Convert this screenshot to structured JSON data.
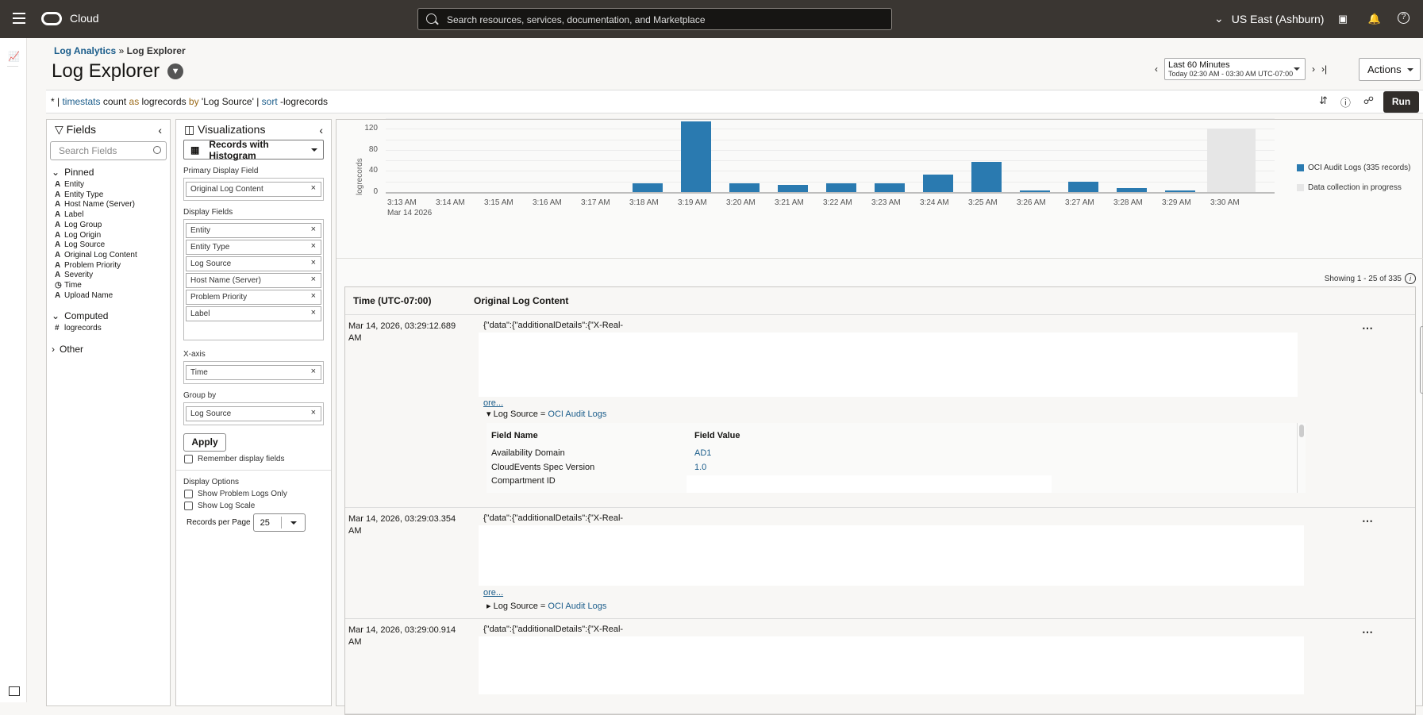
{
  "header": {
    "brand": "Cloud",
    "search_placeholder": "Search resources, services, documentation, and Marketplace",
    "region": "US East (Ashburn)",
    "icons": [
      "menu-icon",
      "oracle-logo-icon",
      "search-icon",
      "chevron-down-icon",
      "cloud-shell-icon",
      "bell-icon",
      "help-icon"
    ]
  },
  "left_nav": {
    "icons": [
      "chart-icon",
      "expand-panel-icon"
    ]
  },
  "breadcrumb": {
    "parent": "Log Analytics",
    "separator": "»",
    "current": "Log Explorer"
  },
  "page": {
    "title": "Log Explorer"
  },
  "time_range": {
    "label": "Last 60 Minutes",
    "detail": "Today 02:30 AM - 03:30 AM UTC-07:00"
  },
  "actions_label": "Actions",
  "run_label": "Run",
  "query": {
    "parts": [
      {
        "text": "* | ",
        "style": "plain"
      },
      {
        "text": "timestats",
        "style": "kw"
      },
      {
        "text": " count ",
        "style": "plain"
      },
      {
        "text": "as",
        "style": "kw2"
      },
      {
        "text": " logrecords ",
        "style": "plain"
      },
      {
        "text": "by",
        "style": "kw2"
      },
      {
        "text": " 'Log Source' | ",
        "style": "plain"
      },
      {
        "text": "sort",
        "style": "kw"
      },
      {
        "text": " -logrecords",
        "style": "plain"
      }
    ]
  },
  "fields_panel": {
    "title": "Fields",
    "search_placeholder": "Search Fields",
    "pinned_label": "Pinned",
    "pinned": [
      {
        "type": "A",
        "name": "Entity"
      },
      {
        "type": "A",
        "name": "Entity Type"
      },
      {
        "type": "A",
        "name": "Host Name (Server)"
      },
      {
        "type": "A",
        "name": "Label"
      },
      {
        "type": "A",
        "name": "Log Group"
      },
      {
        "type": "A",
        "name": "Log Origin"
      },
      {
        "type": "A",
        "name": "Log Source"
      },
      {
        "type": "A",
        "name": "Original Log Content"
      },
      {
        "type": "A",
        "name": "Problem Priority"
      },
      {
        "type": "A",
        "name": "Severity"
      },
      {
        "type": "◷",
        "name": "Time"
      },
      {
        "type": "A",
        "name": "Upload Name"
      }
    ],
    "computed_label": "Computed",
    "computed": [
      {
        "type": "#",
        "name": "logrecords"
      }
    ],
    "other_label": "Other"
  },
  "viz_panel": {
    "title": "Visualizations",
    "selected": "Records with Histogram",
    "primary_label": "Primary Display Field",
    "primary": "Original Log Content",
    "display_label": "Display Fields",
    "display": [
      "Entity",
      "Entity Type",
      "Log Source",
      "Host Name (Server)",
      "Problem Priority",
      "Label"
    ],
    "xaxis_label": "X-axis",
    "xaxis": "Time",
    "groupby_label": "Group by",
    "groupby": "Log Source",
    "apply": "Apply",
    "remember": "Remember display fields",
    "options_label": "Display Options",
    "opt_problem": "Show Problem Logs Only",
    "opt_logscale": "Show Log Scale",
    "rpp_label": "Records per Page",
    "rpp": "25"
  },
  "chart_data": {
    "type": "bar",
    "title": "",
    "xlabel": "",
    "ylabel": "logrecords",
    "ylim": [
      0,
      150
    ],
    "yticks": [
      0,
      40,
      80,
      120
    ],
    "categories": [
      "3:13 AM",
      "3:14 AM",
      "3:15 AM",
      "3:16 AM",
      "3:17 AM",
      "3:18 AM",
      "3:19 AM",
      "3:20 AM",
      "3:21 AM",
      "3:22 AM",
      "3:23 AM",
      "3:24 AM",
      "3:25 AM",
      "3:26 AM",
      "3:27 AM",
      "3:28 AM",
      "3:29 AM",
      "3:30 AM"
    ],
    "date_label": "Mar 14 2026",
    "series": [
      {
        "name": "OCI Audit Logs (335 records)",
        "color": "#2a7ab0",
        "values": [
          0,
          0,
          0,
          0,
          0,
          17,
          133,
          17,
          13,
          17,
          17,
          33,
          57,
          2,
          19,
          7,
          3,
          0
        ]
      }
    ],
    "in_progress": {
      "name": "Data collection in progress",
      "category": "3:30 AM",
      "color": "#e6e6e6"
    },
    "grid": true,
    "legend_position": "right"
  },
  "results": {
    "showing": "Showing 1 - 25 of 335",
    "columns": [
      "Time (UTC-07:00)",
      "Original Log Content"
    ],
    "rows": [
      {
        "time": "Mar 14, 2026, 03:29:12.689 AM",
        "content": "{\"data\":{\"additionalDetails\":{\"X-Real-",
        "more": "ore...",
        "log_source_label": "Log Source =",
        "log_source": "OCI Audit Logs",
        "expanded": true,
        "details": {
          "h_name": "Field Name",
          "h_value": "Field Value",
          "items": [
            {
              "name": "Availability Domain",
              "value": "AD1"
            },
            {
              "name": "CloudEvents Spec Version",
              "value": "1.0"
            },
            {
              "name": "Compartment ID",
              "value": ""
            }
          ]
        }
      },
      {
        "time": "Mar 14, 2026, 03:29:03.354 AM",
        "content": "{\"data\":{\"additionalDetails\":{\"X-Real-",
        "more": "ore...",
        "log_source_label": "Log Source =",
        "log_source": "OCI Audit Logs",
        "expanded": false
      },
      {
        "time": "Mar 14, 2026, 03:29:00.914 AM",
        "content": "{\"data\":{\"additionalDetails\":{\"X-Real-",
        "more": "ore...",
        "expanded": false
      }
    ]
  }
}
